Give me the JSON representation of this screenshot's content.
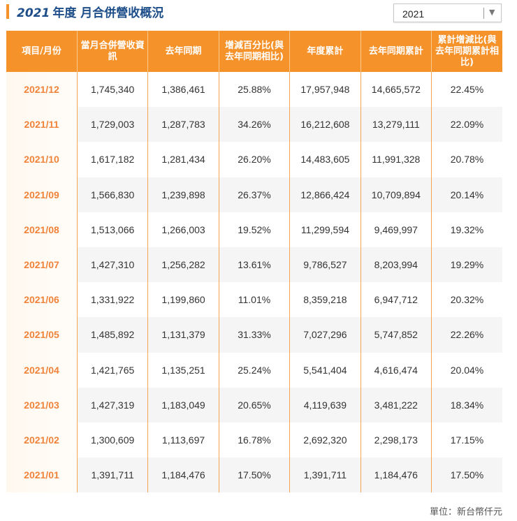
{
  "header": {
    "title_year": "2021",
    "title_text": "年度 月合併營收概況"
  },
  "year_select": {
    "value": "2021",
    "arrow_icon": "triangle-down-icon"
  },
  "colors": {
    "accent": "#f5922a",
    "title": "#1d4e89",
    "month": "#f0833a"
  },
  "table": {
    "columns": [
      "項目/月份",
      "當月合併營收資訊",
      "去年同期",
      "增減百分比(與去年同期相比)",
      "年度累計",
      "去年同期累計",
      "累計增減比(與去年同期累計相比)"
    ],
    "rows": [
      [
        "2021/12",
        "1,745,340",
        "1,386,461",
        "25.88%",
        "17,957,948",
        "14,665,572",
        "22.45%"
      ],
      [
        "2021/11",
        "1,729,003",
        "1,287,783",
        "34.26%",
        "16,212,608",
        "13,279,111",
        "22.09%"
      ],
      [
        "2021/10",
        "1,617,182",
        "1,281,434",
        "26.20%",
        "14,483,605",
        "11,991,328",
        "20.78%"
      ],
      [
        "2021/09",
        "1,566,830",
        "1,239,898",
        "26.37%",
        "12,866,424",
        "10,709,894",
        "20.14%"
      ],
      [
        "2021/08",
        "1,513,066",
        "1,266,003",
        "19.52%",
        "11,299,594",
        "9,469,997",
        "19.32%"
      ],
      [
        "2021/07",
        "1,427,310",
        "1,256,282",
        "13.61%",
        "9,786,527",
        "8,203,994",
        "19.29%"
      ],
      [
        "2021/06",
        "1,331,922",
        "1,199,860",
        "11.01%",
        "8,359,218",
        "6,947,712",
        "20.32%"
      ],
      [
        "2021/05",
        "1,485,892",
        "1,131,379",
        "31.33%",
        "7,027,296",
        "5,747,852",
        "22.26%"
      ],
      [
        "2021/04",
        "1,421,765",
        "1,135,251",
        "25.24%",
        "5,541,404",
        "4,616,474",
        "20.04%"
      ],
      [
        "2021/03",
        "1,427,319",
        "1,183,049",
        "20.65%",
        "4,119,639",
        "3,481,222",
        "18.34%"
      ],
      [
        "2021/02",
        "1,300,609",
        "1,113,697",
        "16.78%",
        "2,692,320",
        "2,298,173",
        "17.15%"
      ],
      [
        "2021/01",
        "1,391,711",
        "1,184,476",
        "17.50%",
        "1,391,711",
        "1,184,476",
        "17.50%"
      ]
    ]
  },
  "footer": {
    "unit": "單位：新台幣仟元"
  }
}
